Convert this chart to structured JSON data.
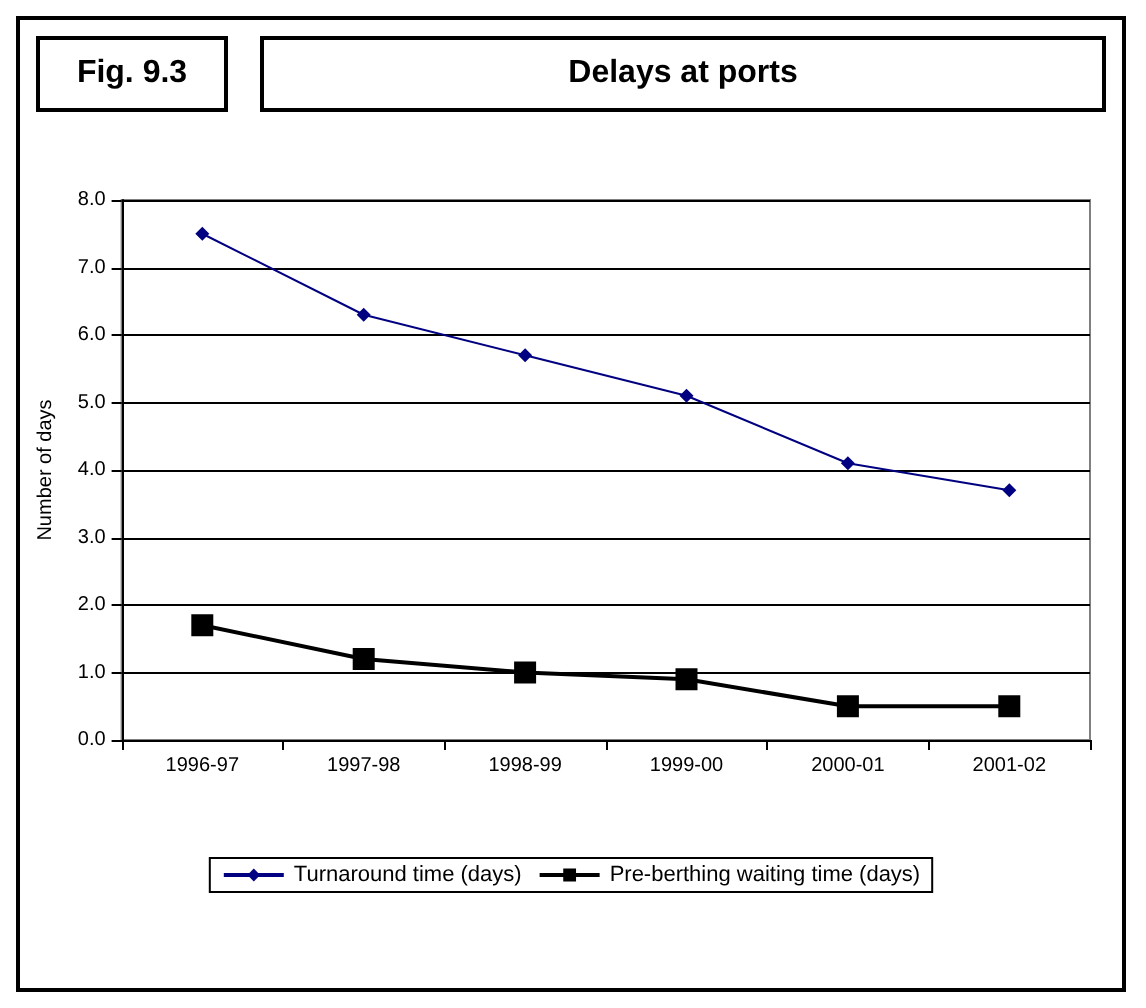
{
  "chart_data": {
    "type": "line",
    "title": "Delays at ports",
    "annotations": [
      "Fig. 9.3"
    ],
    "ylabel": "Number of days",
    "categories": [
      "1996-97",
      "1997-98",
      "1998-99",
      "1999-00",
      "2000-01",
      "2001-02"
    ],
    "series": [
      {
        "name": "Turnaround time (days)",
        "color": "#000080",
        "marker": "diamond",
        "values": [
          7.5,
          6.3,
          5.7,
          5.1,
          4.1,
          3.7
        ]
      },
      {
        "name": "Pre-berthing waiting time (days)",
        "color": "#000000",
        "marker": "square",
        "values": [
          1.7,
          1.2,
          1.0,
          0.9,
          0.5,
          0.5
        ]
      }
    ],
    "ylim": [
      0,
      8
    ],
    "yticks": [
      {
        "value": 0,
        "label": "0.0"
      },
      {
        "value": 1,
        "label": "1.0"
      },
      {
        "value": 2,
        "label": "2.0"
      },
      {
        "value": 3,
        "label": "3.0"
      },
      {
        "value": 4,
        "label": "4.0"
      },
      {
        "value": 5,
        "label": "5.0"
      },
      {
        "value": 6,
        "label": "6.0"
      },
      {
        "value": 7,
        "label": "7.0"
      },
      {
        "value": 8,
        "label": "8.0"
      }
    ],
    "grid": "y",
    "legend": "bottom",
    "line_style": "solid"
  }
}
